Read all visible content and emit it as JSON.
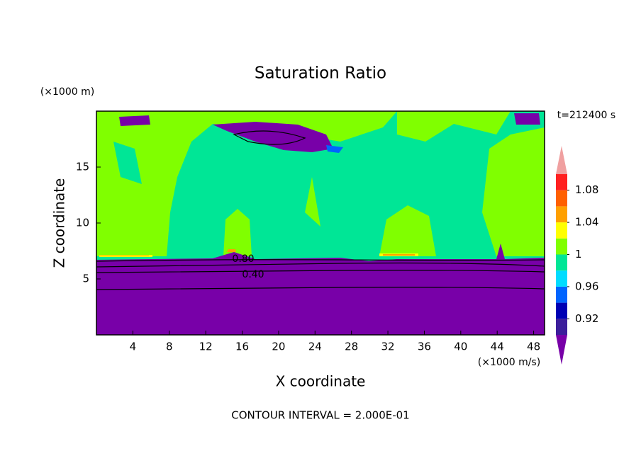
{
  "chart_data": {
    "type": "contour",
    "title": "Saturation Ratio",
    "y_unit": "(×1000 m)",
    "time_label": "t=212400 s",
    "xlabel": "X coordinate",
    "ylabel": "Z coordinate",
    "x_unit": "(×1000 m/s)",
    "footer": "CONTOUR INTERVAL = 2.000E-01",
    "xlim": [
      0,
      49.2
    ],
    "ylim": [
      0,
      20
    ],
    "xticks": [
      4,
      8,
      12,
      16,
      20,
      24,
      28,
      32,
      36,
      40,
      44,
      48
    ],
    "yticks": [
      5,
      10,
      15
    ],
    "contour_labels": [
      {
        "value": 0.8,
        "label": "0.80"
      },
      {
        "value": 0.4,
        "label": "0.40"
      }
    ],
    "colorbar_levels": [
      0.9,
      0.92,
      0.94,
      0.96,
      0.98,
      1,
      1.02,
      1.04,
      1.06,
      1.08,
      1.1
    ],
    "colorbar_ticks": [
      0.92,
      0.96,
      1,
      1.04,
      1.08
    ],
    "colorbar_colors": [
      "#7800a8",
      "#3c1e9b",
      "#0000b4",
      "#0064ff",
      "#00dcff",
      "#00e696",
      "#80ff00",
      "#ffff00",
      "#ffa000",
      "#ff6000",
      "#ff2020",
      "#f0a0a0"
    ]
  }
}
